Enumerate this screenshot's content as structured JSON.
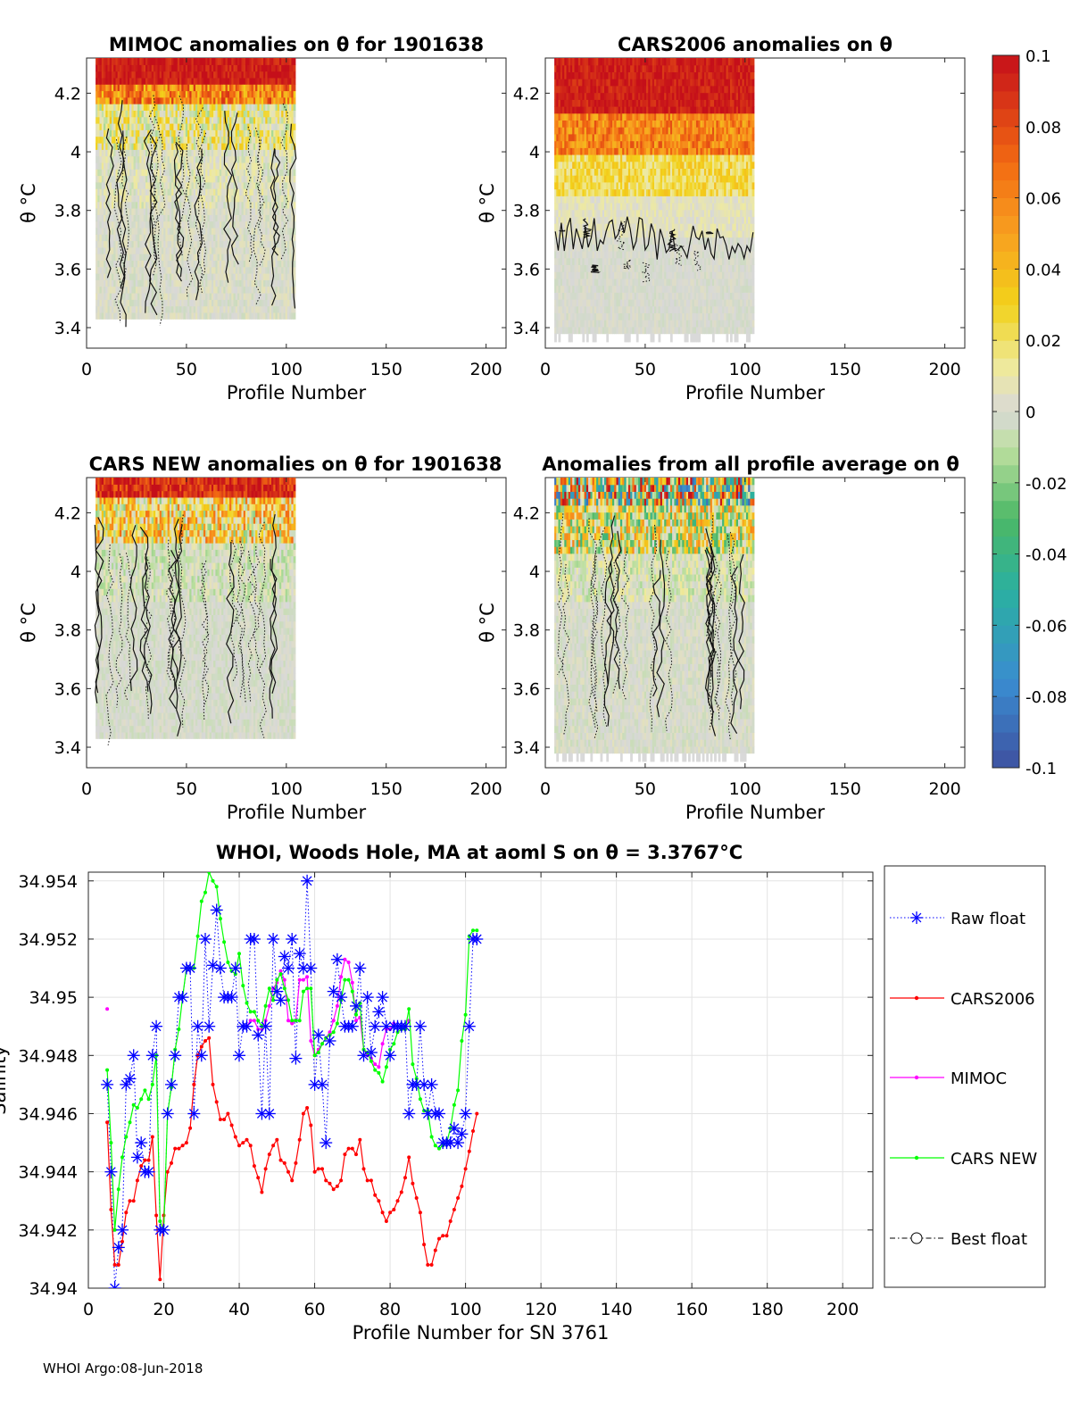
{
  "footer": "WHOI Argo:08-Jun-2018",
  "colorbar": {
    "ticks": [
      "0.1",
      "0.08",
      "0.06",
      "0.04",
      "0.02",
      "0",
      "-0.02",
      "-0.04",
      "-0.06",
      "-0.08",
      "-0.1"
    ],
    "range": [
      -0.1,
      0.1
    ]
  },
  "chart_data": [
    {
      "type": "heatmap",
      "title": "MIMOC anomalies on θ  for 1901638",
      "xlabel": "Profile Number",
      "ylabel": "θ °C",
      "xlim": [
        0,
        210
      ],
      "ylim": [
        3.33,
        4.32
      ],
      "xticks": [
        "0",
        "50",
        "100",
        "150",
        "200"
      ],
      "yticks": [
        "3.4",
        "3.6",
        "3.8",
        "4",
        "4.2"
      ],
      "profile_range": [
        5,
        104
      ]
    },
    {
      "type": "heatmap",
      "title": "CARS2006 anomalies on θ",
      "xlabel": "Profile Number",
      "ylabel": "θ °C",
      "xlim": [
        0,
        210
      ],
      "ylim": [
        3.33,
        4.32
      ],
      "xticks": [
        "0",
        "50",
        "100",
        "150",
        "200"
      ],
      "yticks": [
        "3.4",
        "3.6",
        "3.8",
        "4",
        "4.2"
      ],
      "profile_range": [
        5,
        104
      ]
    },
    {
      "type": "heatmap",
      "title": "CARS NEW anomalies on θ for 1901638",
      "xlabel": "Profile Number",
      "ylabel": "θ °C",
      "xlim": [
        0,
        210
      ],
      "ylim": [
        3.33,
        4.32
      ],
      "xticks": [
        "0",
        "50",
        "100",
        "150",
        "200"
      ],
      "yticks": [
        "3.4",
        "3.6",
        "3.8",
        "4",
        "4.2"
      ],
      "profile_range": [
        5,
        104
      ]
    },
    {
      "type": "heatmap",
      "title": "Anomalies from all profile average on θ",
      "xlabel": "Profile Number",
      "ylabel": "θ °C",
      "xlim": [
        0,
        210
      ],
      "ylim": [
        3.33,
        4.32
      ],
      "xticks": [
        "0",
        "50",
        "100",
        "150",
        "200"
      ],
      "yticks": [
        "3.4",
        "3.6",
        "3.8",
        "4",
        "4.2"
      ],
      "profile_range": [
        5,
        104
      ]
    },
    {
      "type": "line",
      "title": "WHOI, Woods Hole, MA at aoml S on θ = 3.3767°C",
      "xlabel": "Profile Number for SN 3761",
      "ylabel": "Salinity",
      "xlim": [
        0,
        208
      ],
      "ylim": [
        34.94,
        34.9543
      ],
      "xticks": [
        "0",
        "20",
        "40",
        "60",
        "80",
        "100",
        "120",
        "140",
        "160",
        "180",
        "200"
      ],
      "yticks": [
        "34.94",
        "34.942",
        "34.944",
        "34.946",
        "34.948",
        "34.95",
        "34.952",
        "34.954"
      ],
      "legend": [
        "Raw float",
        "CARS2006",
        "MIMOC",
        "CARS NEW",
        "Best float"
      ],
      "legend_position": "right-outside",
      "series": [
        {
          "name": "Raw float",
          "color": "#0000ff",
          "x": [
            5,
            6,
            7,
            8,
            9,
            10,
            11,
            12,
            13,
            14,
            15,
            16,
            17,
            18,
            19,
            20,
            21,
            22,
            23,
            24,
            25,
            26,
            27,
            28,
            29,
            30,
            31,
            32,
            33,
            34,
            35,
            36,
            37,
            38,
            39,
            40,
            41,
            42,
            43,
            44,
            45,
            46,
            47,
            48,
            49,
            50,
            51,
            52,
            53,
            54,
            55,
            56,
            57,
            58,
            59,
            60,
            61,
            62,
            63,
            64,
            65,
            66,
            67,
            68,
            69,
            70,
            71,
            72,
            73,
            74,
            75,
            76,
            77,
            78,
            79,
            80,
            81,
            82,
            83,
            84,
            85,
            86,
            87,
            88,
            89,
            90,
            91,
            92,
            93,
            94,
            95,
            96,
            97,
            98,
            99,
            100,
            101,
            102,
            103
          ],
          "values": [
            34.947,
            34.944,
            34.94,
            34.9414,
            34.942,
            34.947,
            34.9472,
            34.948,
            34.9445,
            34.945,
            34.944,
            34.944,
            34.948,
            34.949,
            34.942,
            34.942,
            34.946,
            34.947,
            34.948,
            34.95,
            34.95,
            34.951,
            34.951,
            34.946,
            34.949,
            34.948,
            34.952,
            34.949,
            34.9511,
            34.953,
            34.951,
            34.95,
            34.95,
            34.95,
            34.951,
            34.948,
            34.949,
            34.949,
            34.952,
            34.952,
            34.9487,
            34.946,
            34.949,
            34.946,
            34.952,
            34.9502,
            34.9499,
            34.9514,
            34.951,
            34.952,
            34.9479,
            34.9515,
            34.951,
            34.954,
            34.951,
            34.947,
            34.9487,
            34.947,
            34.945,
            34.9485,
            34.9502,
            34.9513,
            34.95,
            34.949,
            34.949,
            34.949,
            34.9497,
            34.951,
            34.948,
            34.95,
            34.9481,
            34.949,
            34.9495,
            34.95,
            34.949,
            34.948,
            34.949,
            34.949,
            34.949,
            34.949,
            34.946,
            34.947,
            34.947,
            34.949,
            34.947,
            34.946,
            34.947,
            34.946,
            34.946,
            34.945,
            34.945,
            34.945,
            34.9455,
            34.945,
            34.9453,
            34.946,
            34.949,
            34.952,
            34.952
          ]
        },
        {
          "name": "CARS2006",
          "color": "#ff0000",
          "x": [
            5,
            6,
            7,
            8,
            9,
            10,
            11,
            12,
            13,
            14,
            15,
            16,
            17,
            18,
            19,
            20,
            21,
            22,
            23,
            24,
            25,
            26,
            27,
            28,
            29,
            30,
            31,
            32,
            33,
            34,
            35,
            36,
            37,
            38,
            39,
            40,
            41,
            42,
            43,
            44,
            45,
            46,
            47,
            48,
            49,
            50,
            51,
            52,
            53,
            54,
            55,
            56,
            57,
            58,
            59,
            60,
            61,
            62,
            63,
            64,
            65,
            66,
            67,
            68,
            69,
            70,
            71,
            72,
            73,
            74,
            75,
            76,
            77,
            78,
            79,
            80,
            81,
            82,
            83,
            84,
            85,
            86,
            87,
            88,
            89,
            90,
            91,
            92,
            93,
            94,
            95,
            96,
            97,
            98,
            99,
            100,
            101,
            102,
            103
          ],
          "values": [
            34.9457,
            34.9427,
            34.9408,
            34.9408,
            34.9416,
            34.9426,
            34.943,
            34.943,
            34.9437,
            34.9442,
            34.9444,
            34.9444,
            34.9452,
            34.9425,
            34.9403,
            34.9425,
            34.944,
            34.9443,
            34.9448,
            34.9448,
            34.9449,
            34.945,
            34.9455,
            34.947,
            34.948,
            34.9483,
            34.9485,
            34.9486,
            34.947,
            34.9464,
            34.9458,
            34.9458,
            34.946,
            34.9456,
            34.9452,
            34.9449,
            34.945,
            34.9451,
            34.9449,
            34.9442,
            34.9438,
            34.9433,
            34.9441,
            34.9446,
            34.9449,
            34.9451,
            34.9444,
            34.9443,
            34.944,
            34.9437,
            34.9443,
            34.9451,
            34.946,
            34.9462,
            34.9456,
            34.944,
            34.9441,
            34.9441,
            34.9437,
            34.9436,
            34.9434,
            34.9435,
            34.9437,
            34.9446,
            34.9448,
            34.9448,
            34.9446,
            34.9451,
            34.9441,
            34.9437,
            34.9437,
            34.9432,
            34.943,
            34.9426,
            34.9423,
            34.9426,
            34.9427,
            34.943,
            34.9433,
            34.9438,
            34.9445,
            34.9436,
            34.9431,
            34.9426,
            34.9415,
            34.9408,
            34.9408,
            34.9413,
            34.9417,
            34.9418,
            34.9418,
            34.9423,
            34.9427,
            34.9431,
            34.9435,
            34.9441,
            34.9447,
            34.9454,
            34.946
          ]
        },
        {
          "name": "MIMOC",
          "color": "#ff00ff",
          "x": [
            5,
            41,
            42,
            43,
            44,
            45,
            46,
            47,
            48,
            49,
            50,
            51,
            52,
            53,
            54,
            55,
            56,
            57,
            58,
            59,
            60,
            61,
            62,
            63,
            64,
            65,
            66,
            67,
            68,
            69,
            70,
            71,
            72,
            73,
            74,
            75,
            76,
            77,
            78,
            79,
            80,
            81,
            82,
            83,
            84,
            85
          ],
          "values": [
            34.9496,
            34.949,
            34.949,
            34.9492,
            34.9492,
            34.9489,
            34.9489,
            34.9492,
            34.9497,
            34.9503,
            34.9505,
            34.9509,
            34.9506,
            34.9492,
            34.9491,
            34.9492,
            34.9506,
            34.9506,
            34.9507,
            34.9485,
            34.948,
            34.9482,
            34.9484,
            34.9486,
            34.9488,
            34.9492,
            34.9497,
            34.9507,
            34.9513,
            34.9512,
            34.9505,
            34.9492,
            34.9493,
            34.9482,
            34.948,
            34.9479,
            34.9477,
            34.9476,
            34.9484,
            34.9489,
            34.9489,
            34.9491,
            34.949,
            34.9489,
            34.9489,
            34.9492
          ]
        },
        {
          "name": "CARS NEW",
          "color": "#00ff00",
          "x": [
            5,
            6,
            7,
            8,
            9,
            10,
            11,
            12,
            13,
            14,
            15,
            16,
            17,
            18,
            19,
            20,
            21,
            22,
            23,
            24,
            25,
            26,
            27,
            28,
            29,
            30,
            31,
            32,
            33,
            34,
            35,
            36,
            37,
            38,
            39,
            40,
            41,
            42,
            43,
            44,
            45,
            46,
            47,
            48,
            49,
            50,
            51,
            52,
            53,
            54,
            55,
            56,
            57,
            58,
            59,
            60,
            61,
            62,
            63,
            64,
            65,
            66,
            67,
            68,
            69,
            70,
            71,
            72,
            73,
            74,
            75,
            76,
            77,
            78,
            79,
            80,
            81,
            82,
            83,
            84,
            85,
            86,
            87,
            88,
            89,
            90,
            91,
            92,
            93,
            94,
            95,
            96,
            97,
            98,
            99,
            100,
            101,
            102,
            103
          ],
          "values": [
            34.9475,
            34.945,
            34.942,
            34.9434,
            34.9445,
            34.9452,
            34.9457,
            34.9463,
            34.9462,
            34.9465,
            34.9468,
            34.9465,
            34.947,
            34.948,
            34.9423,
            34.942,
            34.946,
            34.9469,
            34.9482,
            34.9489,
            34.95,
            34.951,
            34.951,
            34.951,
            34.9521,
            34.9533,
            34.9536,
            34.9543,
            34.954,
            34.9538,
            34.9527,
            34.9519,
            34.9512,
            34.9509,
            34.9508,
            34.9515,
            34.9504,
            34.9498,
            34.9495,
            34.9495,
            34.9492,
            34.949,
            34.9497,
            34.9503,
            34.9499,
            34.9506,
            34.9508,
            34.9503,
            34.9499,
            34.9492,
            34.9492,
            34.9492,
            34.9502,
            34.9503,
            34.9503,
            34.948,
            34.9481,
            34.9484,
            34.9486,
            34.9487,
            34.9488,
            34.9491,
            34.9499,
            34.9506,
            34.9506,
            34.9502,
            34.9494,
            34.9498,
            34.9482,
            34.9481,
            34.9478,
            34.9475,
            34.9474,
            34.9471,
            34.9476,
            34.9482,
            34.9484,
            34.9488,
            34.9489,
            34.9489,
            34.9496,
            34.9477,
            34.9472,
            34.9465,
            34.9461,
            34.9461,
            34.9452,
            34.9449,
            34.9448,
            34.9449,
            34.945,
            34.9455,
            34.9463,
            34.9468,
            34.9485,
            34.9494,
            34.9521,
            34.9523,
            34.9523
          ]
        },
        {
          "name": "Best float",
          "color": "#000000",
          "x": [],
          "values": []
        }
      ]
    }
  ]
}
